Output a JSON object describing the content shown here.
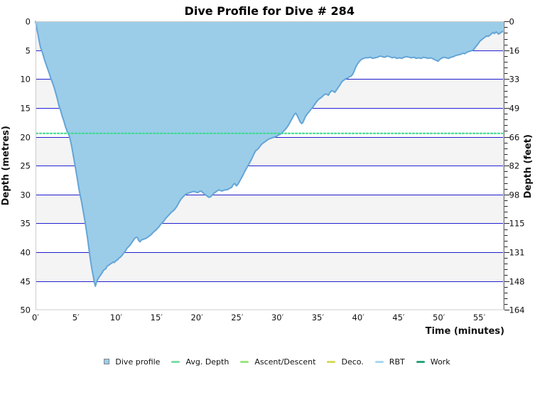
{
  "chart_data": {
    "type": "area",
    "title": "Dive Profile for Dive # 284",
    "xlabel": "Time (minutes)",
    "ylabel_left": "Depth (metres)",
    "ylabel_right": "Depth (feet)",
    "xlim": [
      0,
      58
    ],
    "ylim": [
      0,
      50
    ],
    "x_tick_values": [
      0,
      5,
      10,
      15,
      20,
      25,
      30,
      35,
      40,
      45,
      50,
      55
    ],
    "x_tick_suffix": "′",
    "y_tick_values": [
      0,
      5,
      10,
      15,
      20,
      25,
      30,
      35,
      40,
      45,
      50
    ],
    "y_right_tick_labels": [
      "0",
      "16",
      "33",
      "49",
      "66",
      "82",
      "98",
      "115",
      "131",
      "148",
      "164"
    ],
    "y_minor_tick_step": 1,
    "grid": "horizontal",
    "legend_position": "bottom-center",
    "avg_depth_line": {
      "name": "Avg. Depth",
      "value_m": 19.4,
      "color": "#3dd98d",
      "style": "dashed"
    },
    "styles": {
      "band_color_a": "#f4f4f4",
      "band_color_b": "#ffffff",
      "band_edge_color": "#fbfae6",
      "gridline_color": "#1f1fd6",
      "frame_color": "#cccccc",
      "right_axis_color": "#777777",
      "tick_color": "#222222",
      "text_color": "#111111",
      "title_color": "#000000"
    },
    "series": [
      {
        "name": "Dive profile",
        "type": "area",
        "fill": "#9bcde9",
        "stroke": "#64a5d6",
        "x_unit": "min",
        "y_unit": "m",
        "points": [
          [
            0.0,
            0.0
          ],
          [
            0.15,
            1.2
          ],
          [
            0.3,
            2.2
          ],
          [
            0.45,
            3.4
          ],
          [
            0.6,
            4.4
          ],
          [
            0.75,
            5.0
          ],
          [
            0.9,
            5.6
          ],
          [
            1.1,
            6.6
          ],
          [
            1.3,
            7.4
          ],
          [
            1.5,
            8.2
          ],
          [
            1.7,
            9.0
          ],
          [
            1.9,
            9.9
          ],
          [
            2.1,
            10.6
          ],
          [
            2.3,
            11.4
          ],
          [
            2.5,
            12.4
          ],
          [
            2.7,
            13.4
          ],
          [
            2.9,
            14.6
          ],
          [
            3.1,
            15.4
          ],
          [
            3.3,
            16.4
          ],
          [
            3.5,
            17.2
          ],
          [
            3.7,
            18.2
          ],
          [
            3.9,
            19.0
          ],
          [
            4.05,
            19.4
          ],
          [
            4.2,
            19.9
          ],
          [
            4.35,
            20.8
          ],
          [
            4.5,
            21.8
          ],
          [
            4.65,
            23.0
          ],
          [
            4.8,
            24.2
          ],
          [
            4.95,
            25.4
          ],
          [
            5.1,
            26.6
          ],
          [
            5.25,
            27.9
          ],
          [
            5.4,
            29.2
          ],
          [
            5.55,
            30.2
          ],
          [
            5.7,
            31.2
          ],
          [
            5.85,
            32.4
          ],
          [
            6.0,
            33.6
          ],
          [
            6.15,
            34.8
          ],
          [
            6.3,
            36.2
          ],
          [
            6.45,
            37.6
          ],
          [
            6.6,
            39.2
          ],
          [
            6.75,
            40.8
          ],
          [
            6.9,
            42.2
          ],
          [
            7.05,
            43.4
          ],
          [
            7.2,
            44.5
          ],
          [
            7.3,
            45.3
          ],
          [
            7.42,
            45.9
          ],
          [
            7.58,
            45.1
          ],
          [
            7.8,
            44.5
          ],
          [
            7.95,
            44.2
          ],
          [
            8.1,
            43.9
          ],
          [
            8.25,
            43.6
          ],
          [
            8.4,
            43.2
          ],
          [
            8.55,
            43.0
          ],
          [
            8.7,
            42.9
          ],
          [
            8.85,
            42.5
          ],
          [
            9.0,
            42.3
          ],
          [
            9.15,
            42.2
          ],
          [
            9.3,
            42.0
          ],
          [
            9.45,
            41.9
          ],
          [
            9.6,
            41.7
          ],
          [
            9.75,
            41.8
          ],
          [
            9.9,
            41.6
          ],
          [
            10.05,
            41.4
          ],
          [
            10.2,
            41.3
          ],
          [
            10.35,
            41.0
          ],
          [
            10.5,
            40.9
          ],
          [
            10.7,
            40.6
          ],
          [
            10.9,
            40.2
          ],
          [
            11.1,
            39.9
          ],
          [
            11.3,
            39.4
          ],
          [
            11.5,
            39.1
          ],
          [
            11.7,
            38.8
          ],
          [
            11.9,
            38.4
          ],
          [
            12.1,
            38.0
          ],
          [
            12.3,
            37.6
          ],
          [
            12.5,
            37.4
          ],
          [
            12.65,
            37.5
          ],
          [
            12.8,
            38.0
          ],
          [
            12.95,
            38.2
          ],
          [
            13.1,
            37.9
          ],
          [
            13.3,
            37.8
          ],
          [
            13.5,
            37.7
          ],
          [
            13.7,
            37.6
          ],
          [
            13.9,
            37.4
          ],
          [
            14.1,
            37.2
          ],
          [
            14.3,
            37.0
          ],
          [
            14.5,
            36.7
          ],
          [
            14.7,
            36.4
          ],
          [
            14.9,
            36.2
          ],
          [
            15.1,
            35.9
          ],
          [
            15.3,
            35.6
          ],
          [
            15.5,
            35.2
          ],
          [
            15.7,
            34.9
          ],
          [
            15.9,
            34.6
          ],
          [
            16.1,
            34.2
          ],
          [
            16.3,
            33.9
          ],
          [
            16.5,
            33.6
          ],
          [
            16.7,
            33.3
          ],
          [
            16.9,
            33.0
          ],
          [
            17.1,
            32.8
          ],
          [
            17.3,
            32.5
          ],
          [
            17.5,
            32.1
          ],
          [
            17.7,
            31.6
          ],
          [
            17.9,
            31.1
          ],
          [
            18.1,
            30.7
          ],
          [
            18.3,
            30.4
          ],
          [
            18.5,
            30.1
          ],
          [
            18.7,
            29.9
          ],
          [
            18.9,
            29.8
          ],
          [
            19.1,
            29.7
          ],
          [
            19.3,
            29.6
          ],
          [
            19.5,
            29.5
          ],
          [
            19.7,
            29.5
          ],
          [
            19.9,
            29.6
          ],
          [
            20.1,
            29.7
          ],
          [
            20.3,
            29.5
          ],
          [
            20.5,
            29.4
          ],
          [
            20.7,
            29.6
          ],
          [
            20.9,
            29.9
          ],
          [
            21.1,
            30.1
          ],
          [
            21.3,
            30.3
          ],
          [
            21.5,
            30.5
          ],
          [
            21.7,
            30.4
          ],
          [
            21.9,
            30.1
          ],
          [
            22.1,
            29.8
          ],
          [
            22.3,
            29.6
          ],
          [
            22.5,
            29.4
          ],
          [
            22.7,
            29.2
          ],
          [
            22.9,
            29.3
          ],
          [
            23.1,
            29.4
          ],
          [
            23.3,
            29.3
          ],
          [
            23.5,
            29.2
          ],
          [
            23.7,
            29.2
          ],
          [
            23.9,
            29.1
          ],
          [
            24.1,
            28.9
          ],
          [
            24.3,
            28.8
          ],
          [
            24.5,
            28.3
          ],
          [
            24.7,
            28.1
          ],
          [
            24.9,
            28.5
          ],
          [
            25.1,
            28.2
          ],
          [
            25.3,
            27.7
          ],
          [
            25.5,
            27.2
          ],
          [
            25.7,
            26.7
          ],
          [
            25.9,
            26.1
          ],
          [
            26.1,
            25.6
          ],
          [
            26.3,
            25.1
          ],
          [
            26.5,
            24.6
          ],
          [
            26.7,
            24.1
          ],
          [
            26.9,
            23.5
          ],
          [
            27.1,
            22.9
          ],
          [
            27.3,
            22.4
          ],
          [
            27.5,
            22.2
          ],
          [
            27.7,
            21.9
          ],
          [
            27.9,
            21.5
          ],
          [
            28.1,
            21.2
          ],
          [
            28.3,
            21.0
          ],
          [
            28.5,
            20.8
          ],
          [
            28.7,
            20.6
          ],
          [
            28.9,
            20.4
          ],
          [
            29.1,
            20.3
          ],
          [
            29.3,
            20.2
          ],
          [
            29.5,
            20.1
          ],
          [
            29.7,
            20.0
          ],
          [
            29.9,
            19.9
          ],
          [
            30.1,
            19.7
          ],
          [
            30.3,
            19.6
          ],
          [
            30.5,
            19.4
          ],
          [
            30.7,
            19.1
          ],
          [
            30.9,
            18.8
          ],
          [
            31.1,
            18.5
          ],
          [
            31.3,
            18.1
          ],
          [
            31.5,
            17.6
          ],
          [
            31.7,
            17.1
          ],
          [
            31.9,
            16.6
          ],
          [
            32.1,
            16.1
          ],
          [
            32.25,
            15.9
          ],
          [
            32.4,
            16.2
          ],
          [
            32.6,
            16.8
          ],
          [
            32.8,
            17.4
          ],
          [
            33.0,
            17.7
          ],
          [
            33.15,
            17.5
          ],
          [
            33.3,
            17.0
          ],
          [
            33.5,
            16.4
          ],
          [
            33.7,
            16.0
          ],
          [
            33.9,
            15.7
          ],
          [
            34.1,
            15.3
          ],
          [
            34.3,
            15.0
          ],
          [
            34.5,
            14.6
          ],
          [
            34.7,
            14.2
          ],
          [
            34.9,
            13.8
          ],
          [
            35.1,
            13.5
          ],
          [
            35.3,
            13.3
          ],
          [
            35.5,
            13.1
          ],
          [
            35.7,
            12.8
          ],
          [
            35.9,
            12.6
          ],
          [
            36.1,
            12.6
          ],
          [
            36.3,
            12.8
          ],
          [
            36.5,
            12.3
          ],
          [
            36.7,
            12.0
          ],
          [
            36.9,
            12.1
          ],
          [
            37.1,
            12.3
          ],
          [
            37.3,
            11.9
          ],
          [
            37.5,
            11.5
          ],
          [
            37.7,
            11.1
          ],
          [
            37.9,
            10.6
          ],
          [
            38.1,
            10.3
          ],
          [
            38.3,
            10.1
          ],
          [
            38.5,
            9.9
          ],
          [
            38.7,
            9.8
          ],
          [
            38.9,
            9.6
          ],
          [
            39.1,
            9.5
          ],
          [
            39.3,
            9.2
          ],
          [
            39.5,
            8.6
          ],
          [
            39.7,
            7.9
          ],
          [
            39.9,
            7.4
          ],
          [
            40.1,
            7.0
          ],
          [
            40.3,
            6.7
          ],
          [
            40.5,
            6.5
          ],
          [
            40.7,
            6.4
          ],
          [
            40.9,
            6.3
          ],
          [
            41.2,
            6.3
          ],
          [
            41.5,
            6.2
          ],
          [
            41.8,
            6.4
          ],
          [
            42.1,
            6.3
          ],
          [
            42.4,
            6.2
          ],
          [
            42.7,
            6.0
          ],
          [
            43.0,
            6.1
          ],
          [
            43.3,
            6.2
          ],
          [
            43.6,
            6.0
          ],
          [
            43.9,
            6.1
          ],
          [
            44.2,
            6.3
          ],
          [
            44.5,
            6.2
          ],
          [
            44.8,
            6.4
          ],
          [
            45.1,
            6.3
          ],
          [
            45.4,
            6.4
          ],
          [
            45.7,
            6.2
          ],
          [
            46.0,
            6.1
          ],
          [
            46.3,
            6.2
          ],
          [
            46.6,
            6.3
          ],
          [
            46.9,
            6.2
          ],
          [
            47.2,
            6.4
          ],
          [
            47.5,
            6.3
          ],
          [
            47.8,
            6.4
          ],
          [
            48.1,
            6.2
          ],
          [
            48.4,
            6.3
          ],
          [
            48.7,
            6.4
          ],
          [
            49.0,
            6.3
          ],
          [
            49.3,
            6.5
          ],
          [
            49.6,
            6.7
          ],
          [
            49.9,
            6.9
          ],
          [
            50.1,
            6.6
          ],
          [
            50.3,
            6.4
          ],
          [
            50.6,
            6.2
          ],
          [
            50.9,
            6.3
          ],
          [
            51.2,
            6.4
          ],
          [
            51.5,
            6.2
          ],
          [
            51.8,
            6.1
          ],
          [
            52.1,
            5.9
          ],
          [
            52.4,
            5.8
          ],
          [
            52.7,
            5.7
          ],
          [
            53.0,
            5.5
          ],
          [
            53.2,
            5.6
          ],
          [
            53.4,
            5.4
          ],
          [
            53.7,
            5.2
          ],
          [
            54.0,
            5.1
          ],
          [
            54.3,
            4.9
          ],
          [
            54.5,
            4.5
          ],
          [
            54.8,
            4.0
          ],
          [
            55.1,
            3.4
          ],
          [
            55.4,
            3.05
          ],
          [
            55.7,
            2.75
          ],
          [
            55.9,
            2.5
          ],
          [
            56.1,
            2.6
          ],
          [
            56.4,
            2.3
          ],
          [
            56.7,
            1.9
          ],
          [
            56.9,
            2.1
          ],
          [
            57.1,
            1.8
          ],
          [
            57.4,
            2.2
          ],
          [
            57.7,
            1.9
          ],
          [
            57.9,
            1.7
          ],
          [
            58.0,
            1.85
          ]
        ]
      }
    ],
    "legend": [
      {
        "label": "Dive profile",
        "swatch": "box",
        "color": "#9bcde9",
        "border": "#858585"
      },
      {
        "label": "Avg. Depth",
        "swatch": "line",
        "color": "#7adfa6"
      },
      {
        "label": "Ascent/Descent",
        "swatch": "line",
        "color": "#9ce580"
      },
      {
        "label": "Deco.",
        "swatch": "line",
        "color": "#d6db58"
      },
      {
        "label": "RBT",
        "swatch": "line",
        "color": "#a7d7ef"
      },
      {
        "label": "Work",
        "swatch": "line",
        "color": "#2aa57b"
      }
    ]
  }
}
